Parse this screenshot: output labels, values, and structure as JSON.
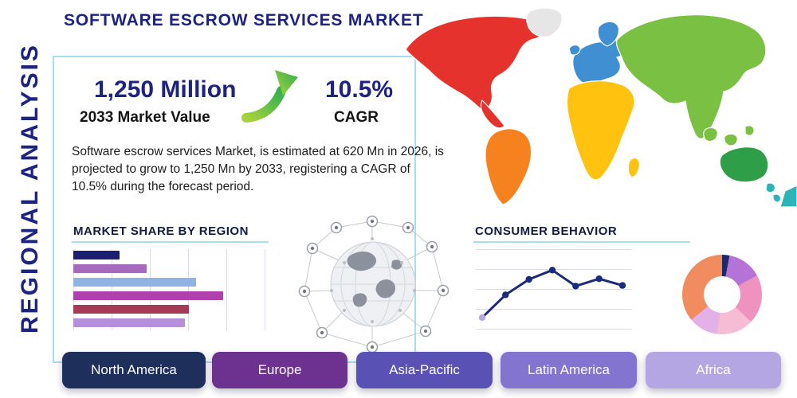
{
  "page": {
    "title": "SOFTWARE ESCROW SERVICES MARKET",
    "side_label": "REGIONAL ANALYSIS"
  },
  "stats": {
    "market_value": "1,250 Million",
    "market_value_caption": "2033 Market Value",
    "cagr_value": "10.5%",
    "cagr_caption": "CAGR",
    "description": "Software escrow services Market, is estimated at 620 Mn in 2026, is projected to grow to 1,250 Mn by 2033, registering a CAGR of 10.5% during the forecast period."
  },
  "sections": {
    "market_share_title": "MARKET SHARE BY REGION",
    "consumer_behavior_title": "CONSUMER BEHAVIOR"
  },
  "chart_data": [
    {
      "type": "bar",
      "orientation": "horizontal",
      "title": "MARKET SHARE BY REGION",
      "categories": [
        "bar-1",
        "bar-2",
        "bar-3",
        "bar-4",
        "bar-5",
        "bar-6"
      ],
      "values": [
        24,
        38,
        64,
        78,
        60,
        58
      ],
      "colors": [
        "#1a1f71",
        "#a569bd",
        "#8fb4e3",
        "#b13fae",
        "#a63a56",
        "#b58fd9"
      ],
      "xlim": [
        0,
        100
      ],
      "grid": true,
      "legend": false
    },
    {
      "type": "line",
      "title": "CONSUMER BEHAVIOR",
      "x": [
        1,
        2,
        3,
        4,
        5,
        6,
        7
      ],
      "values": [
        1.2,
        4.6,
        6.9,
        8.3,
        5.9,
        7.0,
        6.0
      ],
      "ylim": [
        0,
        10
      ],
      "color": "#1b2a7a",
      "first_point_color": "#b9a7e0",
      "grid": true,
      "legend": false
    },
    {
      "type": "pie",
      "donut": true,
      "slices": [
        {
          "value": 3,
          "color": "#1b2a6b"
        },
        {
          "value": 14,
          "color": "#b573d8"
        },
        {
          "value": 20,
          "color": "#ef92c0"
        },
        {
          "value": 15,
          "color": "#f6bcd4"
        },
        {
          "value": 12,
          "color": "#e3b0e8"
        },
        {
          "value": 36,
          "color": "#f08c5f"
        }
      ],
      "legend": false
    }
  ],
  "map": {
    "regions": [
      {
        "name": "north-america",
        "color": "#e5322d"
      },
      {
        "name": "greenland",
        "color": "#e6e6e6"
      },
      {
        "name": "south-america",
        "color": "#f6821f"
      },
      {
        "name": "europe",
        "color": "#3f8fd2"
      },
      {
        "name": "africa",
        "color": "#ffc20e"
      },
      {
        "name": "asia",
        "color": "#7ac143"
      },
      {
        "name": "australia",
        "color": "#2f9e49"
      },
      {
        "name": "new-zealand",
        "color": "#2bb5b8"
      }
    ]
  },
  "region_buttons": [
    {
      "label": "North America",
      "color": "#1e2f5c"
    },
    {
      "label": "Europe",
      "color": "#6d3190"
    },
    {
      "label": "Asia-Pacific",
      "color": "#5a51b4"
    },
    {
      "label": "Latin America",
      "color": "#8274cf"
    },
    {
      "label": "Africa",
      "color": "#b3a6e2"
    }
  ],
  "colors": {
    "accent_navy": "#1c2380",
    "box_border": "#a9dcef",
    "arrow_green_start": "#a8d23c",
    "arrow_green_end": "#2fae4e"
  }
}
